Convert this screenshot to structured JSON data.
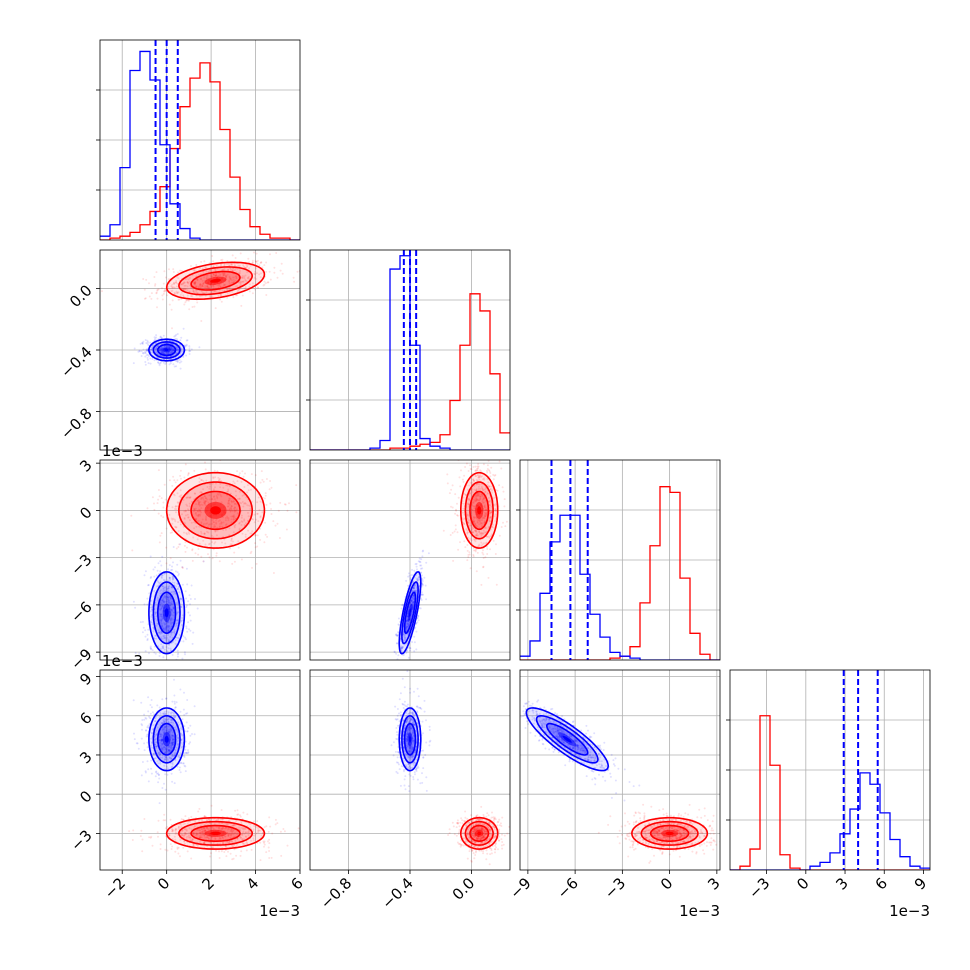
{
  "chart_data": {
    "type": "corner",
    "grid": true,
    "colors": {
      "red": "#ff0000",
      "blue": "#0000ff",
      "grid": "#b0b0b0"
    },
    "series": [
      {
        "color": "#ff0000",
        "means": [
          0.0022,
          0.05,
          0.0,
          -0.003
        ],
        "sd": [
          0.0011,
          0.06,
          0.0012,
          0.0006
        ]
      },
      {
        "color": "#0000ff",
        "means": [
          0.0,
          -0.4,
          -0.0065,
          0.0042
        ],
        "sd": [
          0.0004,
          0.035,
          0.0013,
          0.0012
        ],
        "quantile_lines": [
          [
            -0.0005,
            0.0,
            0.0005
          ],
          [
            -0.44,
            -0.4,
            -0.36
          ],
          [
            -0.0075,
            -0.0063,
            -0.0052
          ],
          [
            0.0029,
            0.004,
            0.0055
          ]
        ]
      }
    ],
    "params": [
      {
        "range": [
          -0.003,
          0.006
        ],
        "ticks": [
          -0.002,
          0.0,
          0.002,
          0.004,
          0.006
        ],
        "tick_labels": [
          "−2",
          "0",
          "2",
          "4",
          "6"
        ],
        "offset_label": "1e−3",
        "hist": {
          "red": [
            0,
            0.01,
            0.02,
            0.04,
            0.08,
            0.15,
            0.28,
            0.48,
            0.7,
            0.85,
            0.93,
            0.83,
            0.58,
            0.33,
            0.16,
            0.07,
            0.03,
            0.01,
            0.01,
            0
          ],
          "blue": [
            0.02,
            0.08,
            0.38,
            0.89,
            0.99,
            0.84,
            0.5,
            0.19,
            0.06,
            0.01,
            0,
            0,
            0,
            0,
            0,
            0,
            0,
            0,
            0,
            0
          ]
        }
      },
      {
        "range": [
          -1.05,
          0.25
        ],
        "ticks": [
          -0.8,
          -0.4,
          0.0
        ],
        "tick_labels": [
          "−0.8",
          "−0.4",
          "0.0"
        ],
        "offset_label": "",
        "hist": {
          "red": [
            0,
            0,
            0,
            0,
            0,
            0,
            0,
            0,
            0.01,
            0.01,
            0.02,
            0.03,
            0.04,
            0.08,
            0.26,
            0.55,
            0.82,
            0.73,
            0.4,
            0.09
          ],
          "blue": [
            0,
            0,
            0,
            0,
            0,
            0,
            0.01,
            0.05,
            0.95,
            1.02,
            0.55,
            0.06,
            0.02,
            0.01,
            0,
            0,
            0,
            0,
            0,
            0
          ]
        }
      },
      {
        "range": [
          -0.0095,
          0.0032
        ],
        "ticks": [
          -0.009,
          -0.006,
          -0.003,
          0.0,
          0.003
        ],
        "tick_labels": [
          "−9",
          "−6",
          "−3",
          "0",
          "3"
        ],
        "offset_label": "1e−3",
        "hist": {
          "red": [
            0,
            0,
            0,
            0,
            0,
            0,
            0,
            0,
            0,
            0.01,
            0.02,
            0.07,
            0.3,
            0.6,
            0.91,
            0.88,
            0.43,
            0.14,
            0.03,
            0
          ],
          "blue": [
            0.02,
            0.1,
            0.35,
            0.62,
            0.76,
            0.76,
            0.45,
            0.24,
            0.12,
            0.04,
            0.02,
            0.01,
            0,
            0,
            0,
            0,
            0,
            0,
            0,
            0
          ]
        }
      },
      {
        "range": [
          -0.0058,
          0.0095
        ],
        "ticks": [
          -0.003,
          0.0,
          0.003,
          0.006,
          0.009
        ],
        "tick_labels": [
          "−3",
          "0",
          "3",
          "6",
          "9"
        ],
        "offset_label": "1e−3",
        "hist": {
          "red": [
            0,
            0.02,
            0.11,
            0.81,
            0.55,
            0.08,
            0.01,
            0,
            0,
            0,
            0,
            0,
            0,
            0,
            0,
            0,
            0,
            0,
            0,
            0
          ],
          "blue": [
            0,
            0,
            0,
            0,
            0,
            0,
            0,
            0,
            0.02,
            0.04,
            0.09,
            0.19,
            0.32,
            0.51,
            0.45,
            0.3,
            0.16,
            0.07,
            0.02,
            0.01
          ]
        }
      }
    ],
    "pair_correlation": {
      "red": {
        "1-0": 0.35,
        "2-0": 0.0,
        "2-1": 0.0,
        "3-0": 0.0,
        "3-1": 0.0,
        "3-2": 0.0
      },
      "blue": {
        "1-0": 0.0,
        "2-0": 0.0,
        "2-1": 0.75,
        "3-0": 0.0,
        "3-1": 0.0,
        "3-2": -0.85
      }
    }
  }
}
